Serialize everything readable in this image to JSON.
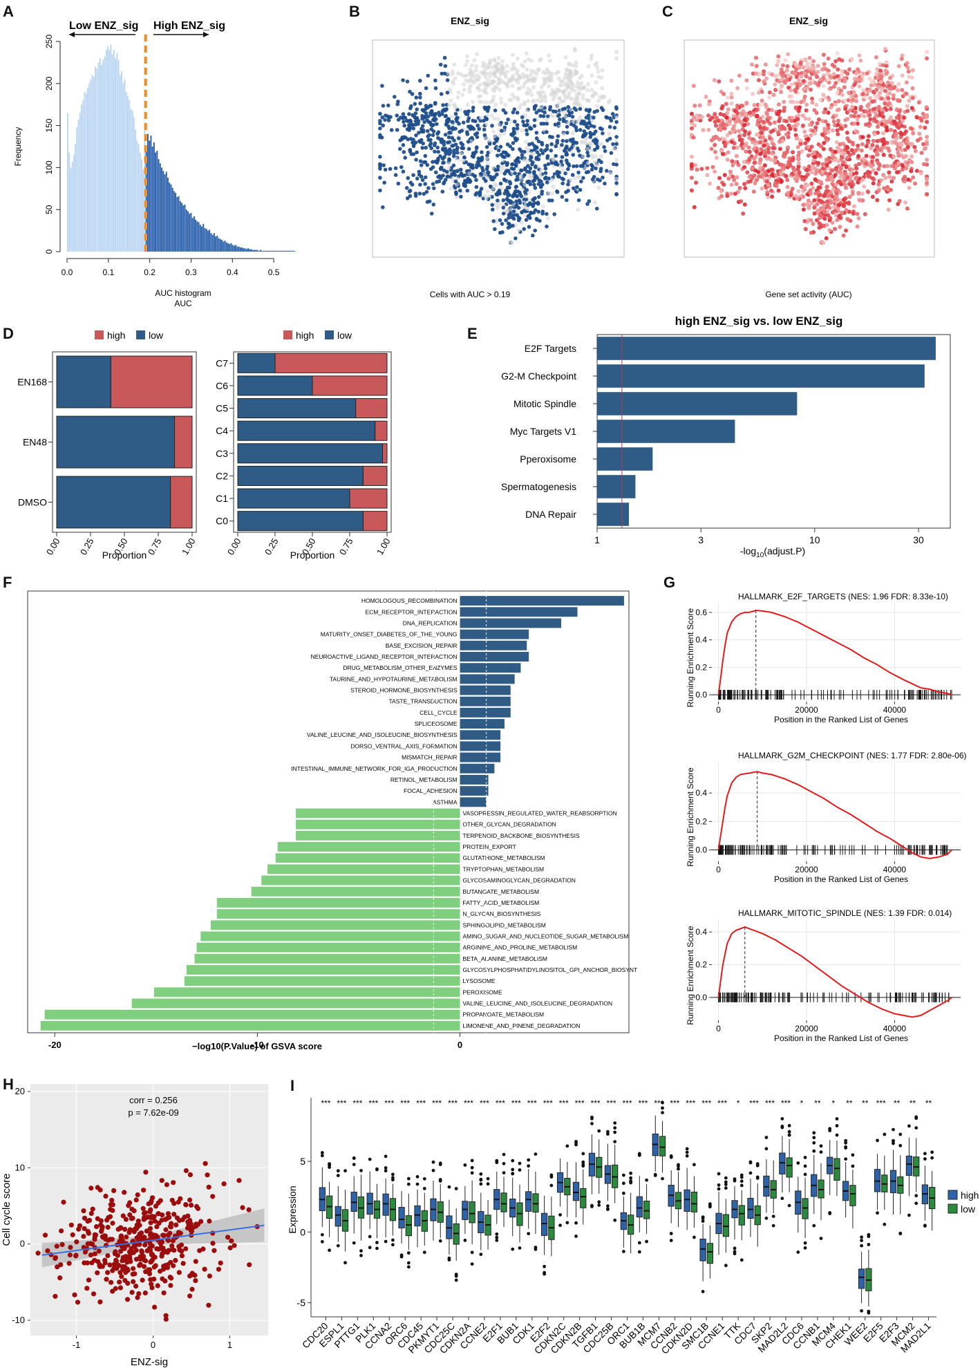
{
  "panels": {
    "A": "A",
    "B": "B",
    "C": "C",
    "D": "D",
    "E": "E",
    "F": "F",
    "G": "G",
    "H": "H",
    "I": "I"
  },
  "chart_data": [
    {
      "id": "A",
      "type": "bar",
      "subtype": "histogram",
      "title": "",
      "xlabel": "AUC histogram\nAUC",
      "ylabel": "Frequency",
      "xlim": [
        0.0,
        0.56
      ],
      "ylim": [
        0,
        250
      ],
      "xticks": [
        "0.0",
        "0.1",
        "0.2",
        "0.3",
        "0.4",
        "0.5"
      ],
      "yticks": [
        "0",
        "50",
        "100",
        "150",
        "200",
        "250"
      ],
      "threshold": 0.19,
      "annotations": [
        "Low ENZ_sig",
        "High ENZ_sig"
      ],
      "bins_start": 0.0,
      "bin_width": 0.00373,
      "values": [
        165,
        118,
        100,
        107,
        115,
        128,
        148,
        157,
        165,
        175,
        180,
        190,
        188,
        195,
        200,
        205,
        210,
        208,
        220,
        218,
        225,
        230,
        222,
        228,
        232,
        240,
        244,
        240,
        246,
        235,
        240,
        230,
        236,
        228,
        210,
        215,
        200,
        205,
        190,
        185,
        180,
        170,
        168,
        160,
        145,
        132,
        128,
        118,
        110,
        98,
        145,
        120,
        140,
        132,
        138,
        125,
        130,
        118,
        120,
        110,
        105,
        100,
        96,
        92,
        95,
        88,
        82,
        80,
        76,
        72,
        70,
        65,
        66,
        60,
        58,
        55,
        56,
        50,
        48,
        45,
        46,
        40,
        42,
        38,
        36,
        35,
        32,
        30,
        33,
        28,
        27,
        25,
        26,
        22,
        20,
        22,
        18,
        19,
        16,
        15,
        14,
        12,
        13,
        11,
        10,
        9,
        10,
        8,
        7,
        8,
        6,
        6,
        5,
        5,
        4,
        4,
        3,
        4,
        3,
        3,
        2,
        2,
        2,
        2,
        1,
        2,
        1,
        1,
        1,
        1,
        1,
        1,
        1,
        1,
        1,
        1,
        1,
        1,
        1,
        1,
        1,
        1,
        1,
        1,
        1,
        1,
        1,
        1
      ]
    },
    {
      "id": "B",
      "type": "scatter",
      "title": "ENZ_sig",
      "xlabel": "Cells with AUC > 0.19",
      "colors": {
        "background": "#d6d6d6",
        "highlight": "#1f4e8c"
      }
    },
    {
      "id": "C",
      "type": "scatter",
      "title": "ENZ_sig",
      "xlabel": "Gene set activity (AUC)",
      "colors": {
        "low": "#f8d9d6",
        "high": "#d9212a"
      }
    },
    {
      "id": "D1",
      "type": "bar",
      "subtype": "stacked-horizontal",
      "legend": [
        "high",
        "low"
      ],
      "categories": [
        "EN168",
        "EN48",
        "DMSO"
      ],
      "series": [
        {
          "name": "low",
          "values": [
            0.4,
            0.87,
            0.84
          ]
        },
        {
          "name": "high",
          "values": [
            0.6,
            0.13,
            0.16
          ]
        }
      ],
      "xlabel": "Proportion",
      "xticks": [
        "0.00",
        "0.25",
        "0.50",
        "0.75",
        "1.00"
      ]
    },
    {
      "id": "D2",
      "type": "bar",
      "subtype": "stacked-horizontal",
      "legend": [
        "high",
        "low"
      ],
      "categories": [
        "C7",
        "C6",
        "C5",
        "C4",
        "C3",
        "C2",
        "C1",
        "C0"
      ],
      "series": [
        {
          "name": "low",
          "values": [
            0.25,
            0.5,
            0.79,
            0.92,
            0.97,
            0.84,
            0.75,
            0.84
          ]
        },
        {
          "name": "high",
          "values": [
            0.75,
            0.5,
            0.21,
            0.08,
            0.03,
            0.16,
            0.25,
            0.16
          ]
        }
      ],
      "xlabel": "Proportion",
      "xticks": [
        "0.00",
        "0.25",
        "0.50",
        "0.75",
        "1.00"
      ]
    },
    {
      "id": "E",
      "type": "bar",
      "subtype": "horizontal-log",
      "title": "high ENZ_sig vs. low ENZ_sig",
      "xlabel": "-log",
      "xlabel_sub": "10",
      "xlabel_tail": "(adjust.P)",
      "categories": [
        "E2F Targets",
        "G2-M Checkpoint",
        "Mitotic Spindle",
        "Myc Targets V1",
        "Pperoxisome",
        "Spermatogenesis",
        "DNA Repair"
      ],
      "values": [
        36,
        32,
        8.3,
        4.3,
        1.8,
        1.5,
        1.4
      ],
      "xticks": [
        1,
        3,
        10,
        30
      ],
      "xlim": [
        1,
        42
      ],
      "reference_line": 1.3
    },
    {
      "id": "F",
      "type": "bar",
      "subtype": "horizontal-diverging",
      "xlabel": "−log10(P.Value) of GSVA score",
      "xticks": [
        "-20",
        "-10",
        "0"
      ],
      "xlim": [
        -21,
        8
      ],
      "reference_lines": [
        1.3,
        -1.3
      ],
      "categories": [
        "HOMOLOGOUS_RECOMBINATION",
        "ECM_RECEPTOR_INTERACTION",
        "DNA_REPLICATION",
        "MATURITY_ONSET_DIABETES_OF_THE_YOUNG",
        "BASE_EXCISION_REPAIR",
        "NEUROACTIVE_LIGAND_RECEPTOR_INTERACTION",
        "DRUG_METABOLISM_OTHER_ENZYMES",
        "TAURINE_AND_HYPOTAURINE_METABOLISM",
        "STEROID_HORMONE_BIOSYNTHESIS",
        "TASTE_TRANSDUCTION",
        "CELL_CYCLE",
        "SPLICEOSOME",
        "VALINE_LEUCINE_AND_ISOLEUCINE_BIOSYNTHESIS",
        "DORSO_VENTRAL_AXIS_FORMATION",
        "MISMATCH_REPAIR",
        "INTESTINAL_IMMUNE_NETWORK_FOR_IGA_PRODUCTION",
        "RETINOL_METABOLISM",
        "FOCAL_ADHESION",
        "ASTHMA",
        "VASOPRESSIN_REGULATED_WATER_REABSORPTION",
        "OTHER_GLYCAN_DEGRADATION",
        "TERPENOID_BACKBONE_BIOSYNTHESIS",
        "PROTEIN_EXPORT",
        "GLUTATHIONE_METABOLISM",
        "TRYPTOPHAN_METABOLISM",
        "GLYCOSAMINOGLYCAN_DEGRADATION",
        "BUTANOATE_METABOLISM",
        "FATTY_ACID_METABOLISM",
        "N_GLYCAN_BIOSYNTHESIS",
        "SPHINGOLIPID_METABOLISM",
        "AMINO_SUGAR_AND_NUCLEOTIDE_SUGAR_METABOLISM",
        "ARGININE_AND_PROLINE_METABOLISM",
        "BETA_ALANINE_METABOLISM",
        "GLYCOSYLPHOSPHATIDYLINOSITOL_GPI_ANCHOR_BIOSYNT",
        "LYSOSOME",
        "PEROXISOME",
        "VALINE_LEUCINE_AND_ISOLEUCINE_DEGRADATION",
        "PROPANOATE_METABOLISM",
        "LIMONENE_AND_PINENE_DEGRADATION"
      ],
      "values": [
        8.1,
        5.8,
        5.0,
        3.4,
        3.3,
        3.4,
        3.0,
        2.7,
        2.5,
        2.5,
        2.5,
        2.2,
        2.0,
        2.0,
        2.0,
        1.7,
        1.4,
        1.4,
        1.3,
        -8.1,
        -8.1,
        -8.1,
        -9.0,
        -9.1,
        -9.5,
        -9.8,
        -10.3,
        -12.0,
        -12.0,
        -12.3,
        -12.8,
        -13.0,
        -13.1,
        -13.5,
        -13.6,
        -15.1,
        -16.2,
        -20.5,
        -20.7
      ]
    },
    {
      "id": "G1",
      "type": "line",
      "title": "HALLMARK_E2F_TARGETS (NES: 1.96  FDR: 8.33e-10)",
      "xlabel": "Position in the Ranked List of Genes",
      "ylabel": "Running Enrichment Score",
      "xticks": [
        "0",
        "20000",
        "40000"
      ],
      "yticks": [
        "0.0",
        "0.2",
        "0.4",
        "0.6"
      ],
      "ylim": [
        -0.05,
        0.65
      ],
      "xlim": [
        -1500,
        55000
      ],
      "peak_x": 8500,
      "x": [
        0,
        500,
        1000,
        1500,
        2000,
        3000,
        4000,
        5000,
        6000,
        7000,
        8500,
        10000,
        12000,
        15000,
        18000,
        21000,
        24000,
        27000,
        30000,
        33000,
        36000,
        39000,
        42000,
        44000,
        46000,
        48000,
        50000,
        52000,
        53000
      ],
      "y": [
        0,
        0.12,
        0.25,
        0.36,
        0.45,
        0.53,
        0.57,
        0.59,
        0.6,
        0.6,
        0.615,
        0.61,
        0.6,
        0.57,
        0.53,
        0.48,
        0.43,
        0.38,
        0.33,
        0.27,
        0.22,
        0.16,
        0.11,
        0.08,
        0.05,
        0.04,
        0.02,
        0.01,
        0
      ]
    },
    {
      "id": "G2",
      "type": "line",
      "title": "HALLMARK_G2M_CHECKPOINT (NES: 1.77  FDR: 2.80e-06)",
      "xlabel": "Position in the Ranked List of Genes",
      "ylabel": "Running Enrichment Score",
      "xticks": [
        "0",
        "20000",
        "40000"
      ],
      "yticks": [
        "0.0",
        "0.2",
        "0.4"
      ],
      "ylim": [
        -0.08,
        0.6
      ],
      "xlim": [
        -1500,
        55000
      ],
      "peak_x": 8800,
      "x": [
        0,
        500,
        1000,
        1500,
        2000,
        3000,
        4000,
        5000,
        6000,
        7000,
        8800,
        10000,
        12000,
        15000,
        18000,
        21000,
        24000,
        27000,
        30000,
        33000,
        36000,
        39000,
        42000,
        44000,
        46000,
        48000,
        50000,
        52000,
        53000
      ],
      "y": [
        0,
        0.1,
        0.2,
        0.3,
        0.38,
        0.47,
        0.51,
        0.53,
        0.535,
        0.54,
        0.55,
        0.54,
        0.53,
        0.5,
        0.46,
        0.41,
        0.36,
        0.3,
        0.25,
        0.19,
        0.13,
        0.08,
        0.02,
        -0.02,
        -0.05,
        -0.06,
        -0.05,
        -0.03,
        0
      ]
    },
    {
      "id": "G3",
      "type": "line",
      "title": "HALLMARK_MITOTIC_SPINDLE (NES: 1.39  FDR: 0.014)",
      "xlabel": "Position in the Ranked List of Genes",
      "ylabel": "Running Enrichment Score",
      "xticks": [
        "0",
        "20000",
        "40000"
      ],
      "yticks": [
        "0.0",
        "0.2",
        "0.4"
      ],
      "ylim": [
        -0.14,
        0.46
      ],
      "xlim": [
        -1500,
        55000
      ],
      "peak_x": 6000,
      "x": [
        0,
        500,
        1000,
        2000,
        3000,
        4000,
        5000,
        6000,
        8000,
        10000,
        13000,
        16000,
        19000,
        22000,
        25000,
        28000,
        31000,
        34000,
        37000,
        40000,
        42000,
        44000,
        46000,
        48000,
        50000,
        52000,
        53000
      ],
      "y": [
        0,
        0.1,
        0.2,
        0.33,
        0.39,
        0.41,
        0.42,
        0.43,
        0.41,
        0.39,
        0.35,
        0.3,
        0.25,
        0.19,
        0.13,
        0.07,
        0.02,
        -0.03,
        -0.07,
        -0.1,
        -0.11,
        -0.12,
        -0.11,
        -0.08,
        -0.05,
        -0.02,
        0
      ]
    },
    {
      "id": "H",
      "type": "scatter",
      "xlabel": "ENZ-sig",
      "ylabel": "Cell cycle score",
      "xticks": [
        "-1",
        "0",
        "1"
      ],
      "yticks": [
        "-10",
        "0",
        "10",
        "20"
      ],
      "xlim": [
        -1.6,
        1.5
      ],
      "ylim": [
        -12,
        21
      ],
      "annotation": [
        "corr = 0.256",
        "p = 7.62e-09"
      ],
      "fit": {
        "slope": 1.35,
        "intercept": 0.5
      },
      "n_points": 430,
      "seed": 7
    },
    {
      "id": "I",
      "type": "boxplot",
      "ylabel": "Expression",
      "yticks": [
        "-5",
        "0",
        "5"
      ],
      "ylim": [
        -6,
        9.5
      ],
      "legend": [
        "high",
        "low"
      ],
      "categories": [
        "CDC20",
        "ESPL1",
        "PTTG1",
        "PLK1",
        "CCNA2",
        "ORC6",
        "CDC45",
        "PKMYT1",
        "CDC25C",
        "CDKN2A",
        "CCNE2",
        "E2F1",
        "BUB1",
        "CDK1",
        "E2F2",
        "CDKN2C",
        "CDKN2B",
        "TGFB1",
        "CDC25B",
        "ORC1",
        "BUB1B",
        "MCM7",
        "CCNB2",
        "CDKN2D",
        "SMC1B",
        "CCNE1",
        "TTK",
        "CDC7",
        "SKP2",
        "MAD2L2",
        "CDC6",
        "CCNB1",
        "MCM4",
        "CHEK1",
        "WEE2",
        "E2F5",
        "E2F3",
        "MCM2",
        "MAD2L1"
      ],
      "high_medians": [
        2.3,
        1.2,
        2.1,
        2.0,
        2.0,
        0.9,
        1.2,
        1.6,
        0.3,
        1.6,
        0.7,
        2.3,
        1.7,
        2.3,
        0.6,
        3.5,
        2.8,
        4.8,
        4.1,
        0.8,
        1.7,
        6.2,
        2.6,
        2.3,
        -1.2,
        0.6,
        1.6,
        1.6,
        3.2,
        4.9,
        2.1,
        3.3,
        4.7,
        2.9,
        -3.2,
        3.6,
        3.6,
        4.8,
        2.7
      ],
      "low_medians": [
        1.8,
        0.8,
        1.7,
        1.6,
        1.6,
        0.5,
        0.8,
        1.4,
        -0.1,
        1.3,
        0.5,
        2.0,
        1.3,
        2.0,
        0.3,
        3.2,
        2.5,
        4.6,
        3.9,
        0.5,
        1.5,
        6.0,
        2.2,
        2.0,
        -1.4,
        0.4,
        1.3,
        1.2,
        3.0,
        4.7,
        1.7,
        3.0,
        4.5,
        2.7,
        -3.4,
        3.4,
        3.3,
        4.6,
        2.4
      ],
      "significance": [
        "***",
        "***",
        "***",
        "***",
        "***",
        "***",
        "***",
        "***",
        "***",
        "***",
        "***",
        "***",
        "***",
        "***",
        "***",
        "***",
        "***",
        "***",
        "***",
        "***",
        "***",
        "***",
        "***",
        "***",
        "***",
        "***",
        "*",
        "***",
        "***",
        "***",
        "*",
        "**",
        "*",
        "**",
        "**",
        "***",
        "**",
        "**",
        "**"
      ]
    }
  ]
}
